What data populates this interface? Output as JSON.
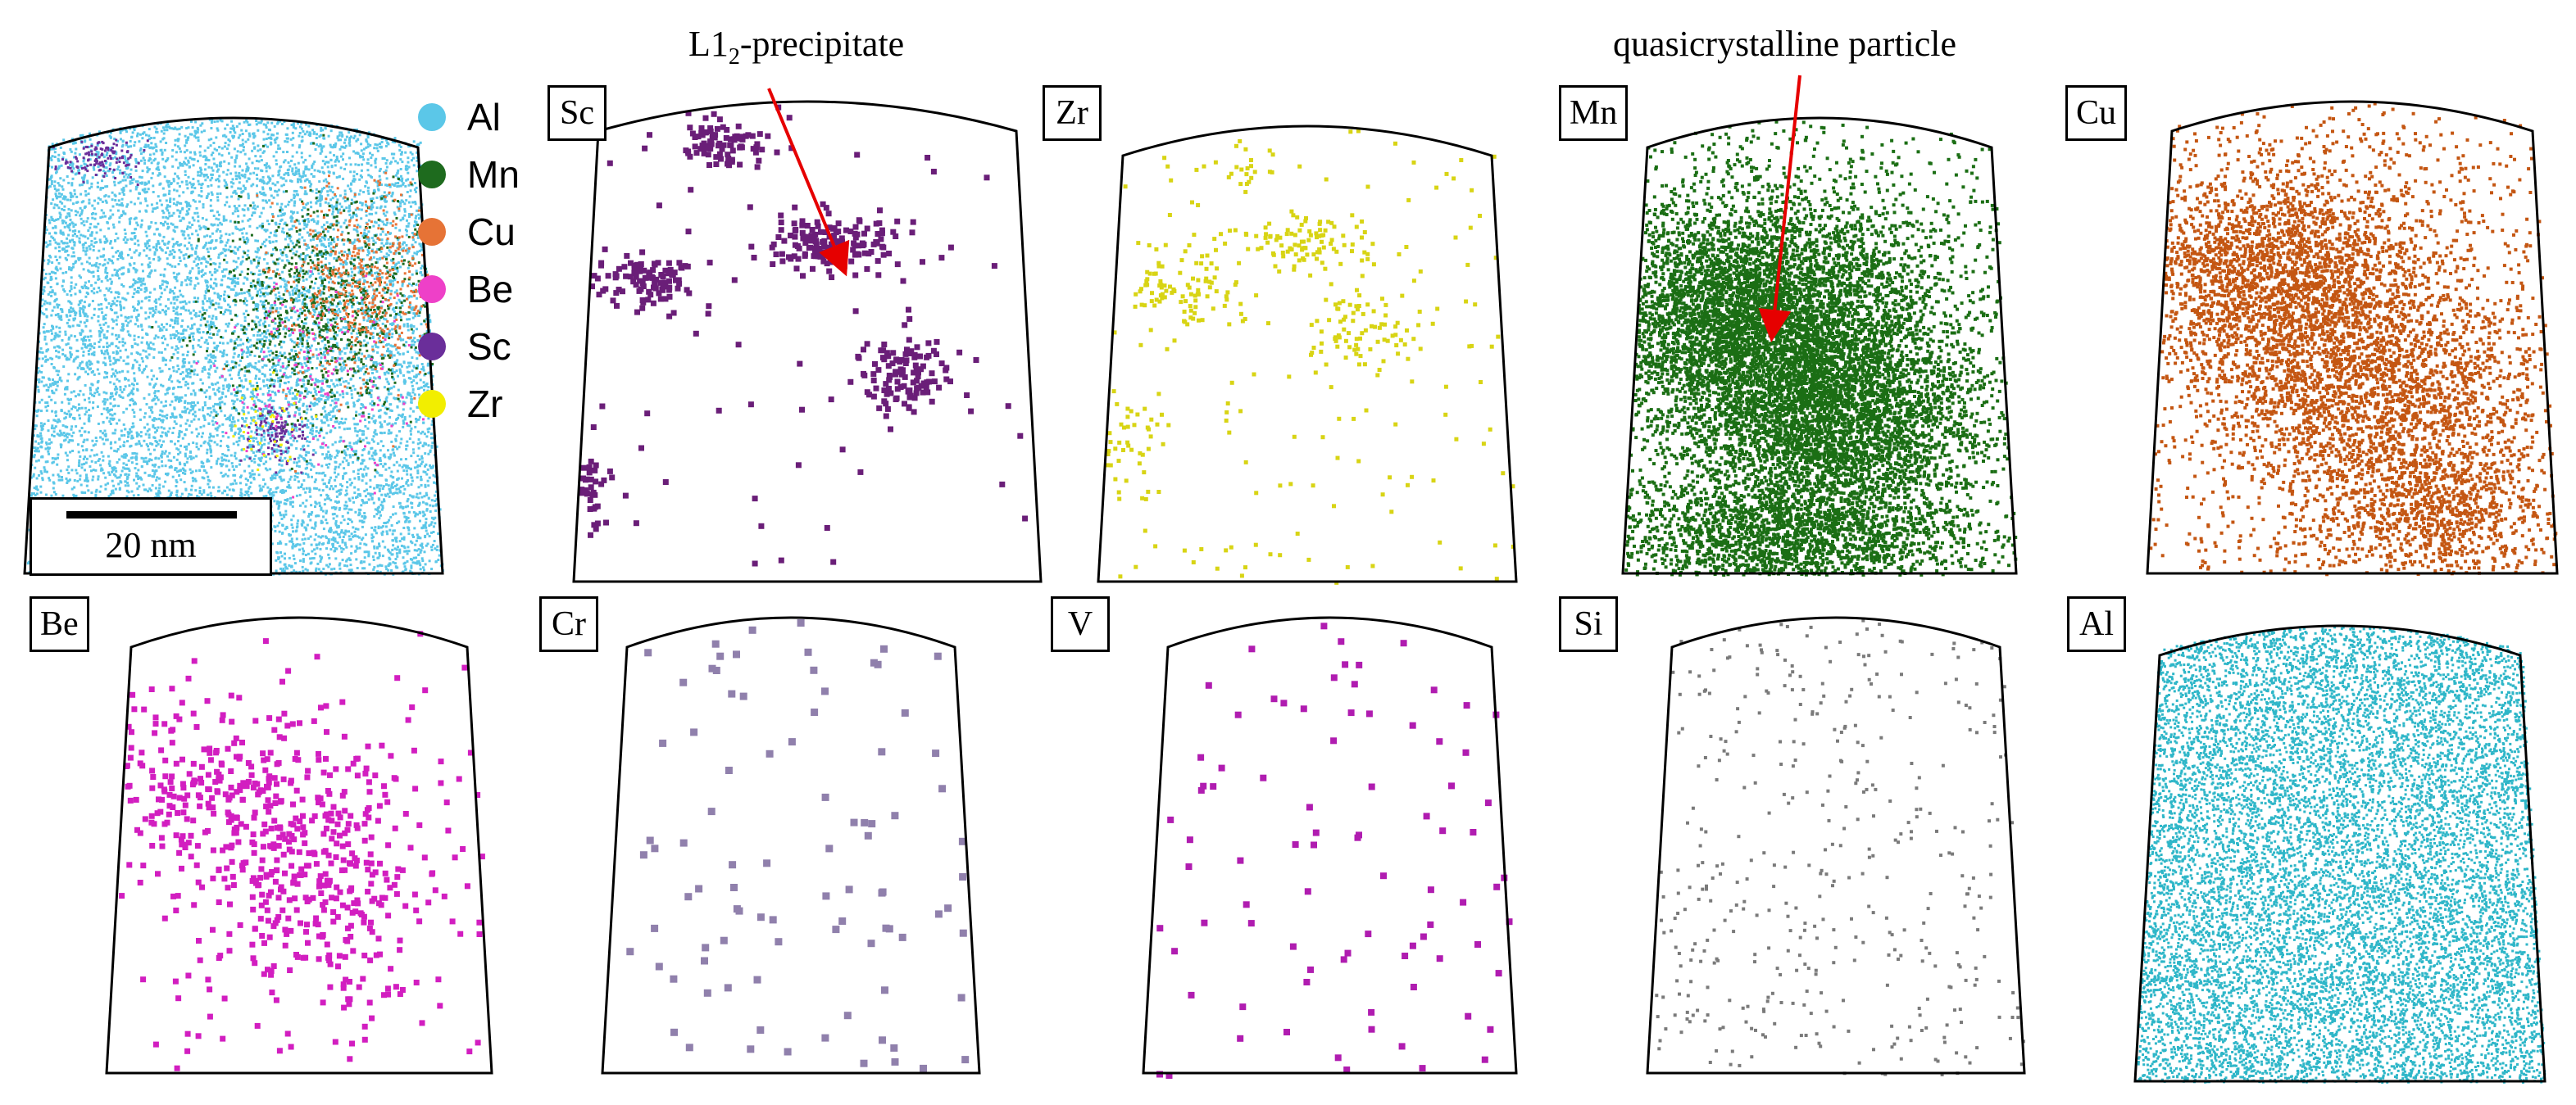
{
  "figure": {
    "composite_legend": {
      "items": [
        {
          "label": "Al",
          "color": "#5bc7e8"
        },
        {
          "label": "Mn",
          "color": "#1e6b1e"
        },
        {
          "label": "Cu",
          "color": "#e67336"
        },
        {
          "label": "Be",
          "color": "#ee40c8"
        },
        {
          "label": "Sc",
          "color": "#6a2e9a"
        },
        {
          "label": "Zr",
          "color": "#f2ee00"
        }
      ]
    },
    "scale_bar": {
      "label": "20 nm"
    },
    "annotations": {
      "l12": {
        "base": "L1",
        "sub": "2",
        "suffix": "-precipitate"
      },
      "quasi": "quasicrystalline particle"
    },
    "panels": [
      {
        "id": "composite",
        "label": "",
        "color": "#5bc7e8"
      },
      {
        "id": "sc",
        "label": "Sc",
        "color": "#6a1e78"
      },
      {
        "id": "zr",
        "label": "Zr",
        "color": "#d8d414"
      },
      {
        "id": "mn",
        "label": "Mn",
        "color": "#1b6e14"
      },
      {
        "id": "cu",
        "label": "Cu",
        "color": "#c45612"
      },
      {
        "id": "be",
        "label": "Be",
        "color": "#d21ec0"
      },
      {
        "id": "cr",
        "label": "Cr",
        "color": "#9080ac"
      },
      {
        "id": "v",
        "label": "V",
        "color": "#b01cb0"
      },
      {
        "id": "si",
        "label": "Si",
        "color": "#7a7a7a"
      },
      {
        "id": "al",
        "label": "Al",
        "color": "#2eb6c8"
      }
    ]
  }
}
